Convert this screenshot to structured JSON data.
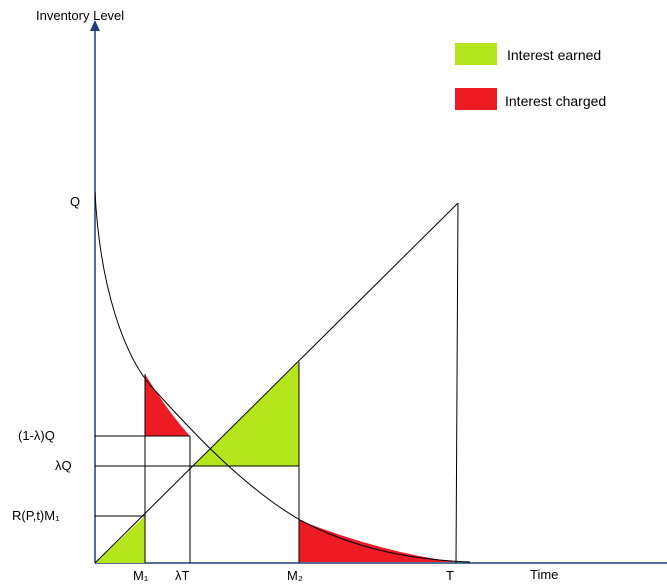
{
  "y_axis_label": "Inventory Level",
  "x_axis_label": "Time",
  "legend": {
    "earned": {
      "label": "Interest earned",
      "color": "#b5e61d"
    },
    "charged": {
      "label": "Interest charged",
      "color": "#ed1c24"
    }
  },
  "y_labels": {
    "q": "Q",
    "one_minus_lambda_q": "(1-λ)Q",
    "lambda_q": "λQ",
    "rpt_m1": "R(P,t)M₁"
  },
  "x_labels": {
    "m1": "M₁",
    "lambda_t": "λT",
    "m2": "M₂",
    "t": "T"
  },
  "colors": {
    "line": "#000000",
    "axis": "#1f3d7a"
  }
}
